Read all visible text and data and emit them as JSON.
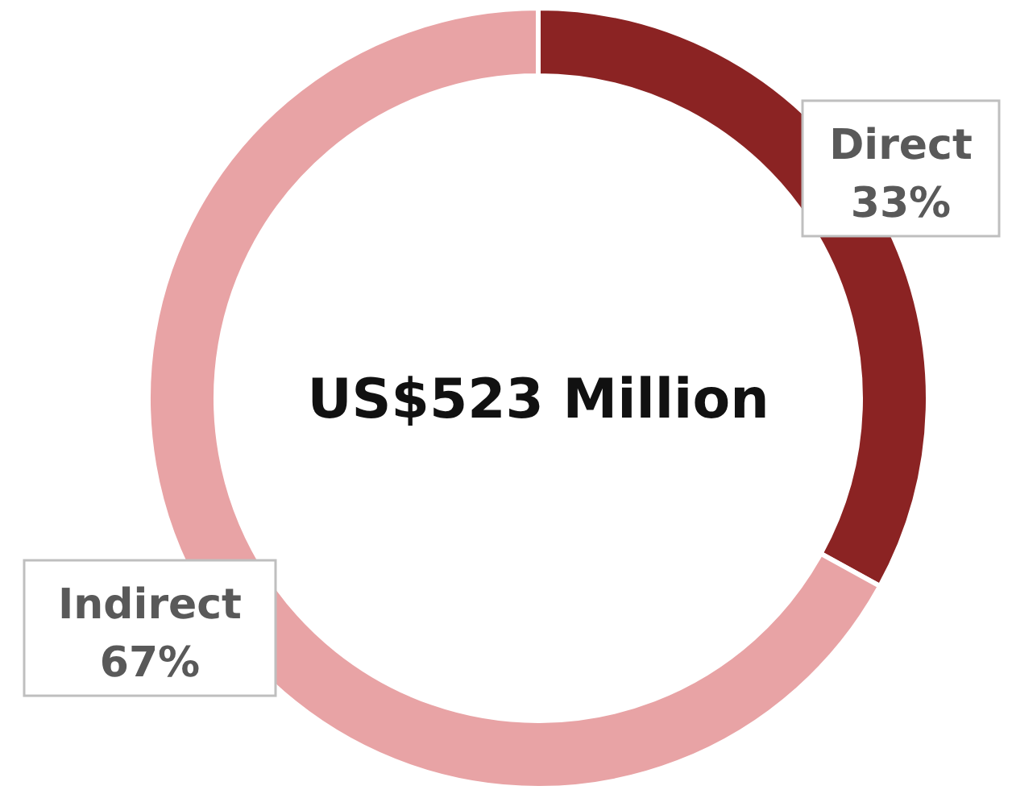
{
  "chart_data": {
    "type": "donut",
    "categories": [
      "Direct",
      "Indirect"
    ],
    "values": [
      33,
      67
    ],
    "colors": [
      "#8b2323",
      "#e8a3a5"
    ],
    "value_labels": [
      "33%",
      "67%"
    ],
    "annotations": [
      "US$523 Million"
    ]
  }
}
